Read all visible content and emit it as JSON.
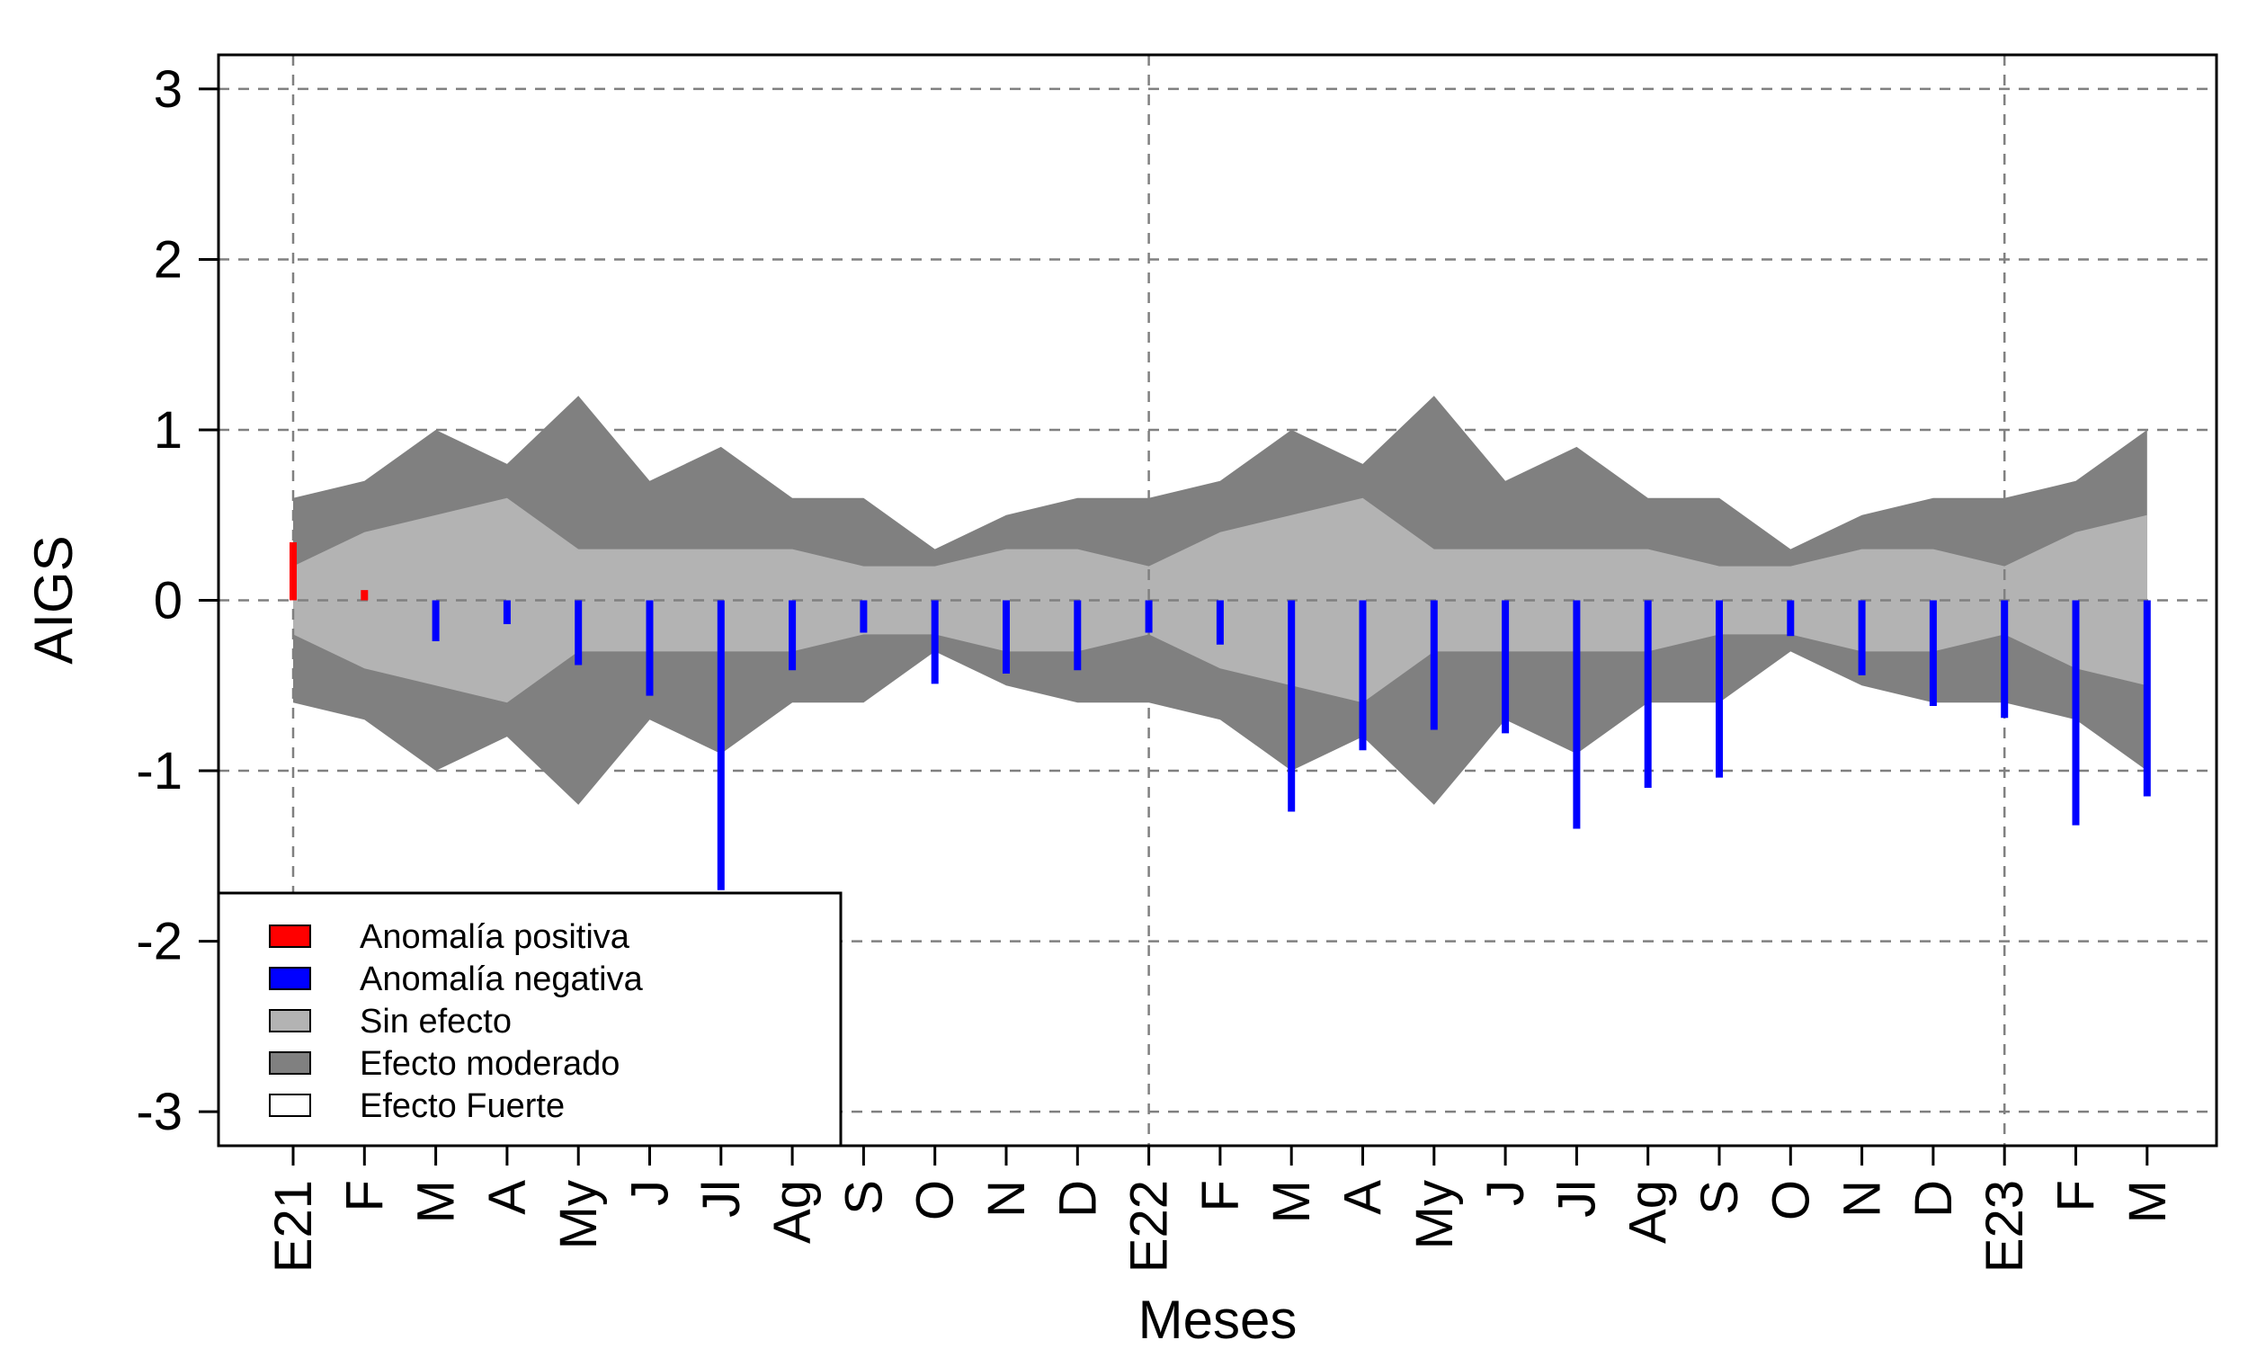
{
  "chart_data": {
    "type": "bar",
    "xlabel": "Meses",
    "ylabel": "AIGS",
    "ylim": [
      -3.2,
      3.2
    ],
    "yticks": [
      -3,
      -2,
      -1,
      0,
      1,
      2,
      3
    ],
    "ytick_labels": [
      "-3",
      "-2",
      "-1",
      "0",
      "1",
      "2",
      "3"
    ],
    "categories": [
      "E21",
      "F",
      "M",
      "A",
      "My",
      "J",
      "Jl",
      "Ag",
      "S",
      "O",
      "N",
      "D",
      "E22",
      "F",
      "M",
      "A",
      "My",
      "J",
      "Jl",
      "Ag",
      "S",
      "O",
      "N",
      "D",
      "E23",
      "F",
      "M"
    ],
    "values": [
      0.34,
      0.06,
      -0.24,
      -0.14,
      -0.38,
      -0.56,
      -1.7,
      -0.41,
      -0.19,
      -0.49,
      -0.43,
      -0.41,
      -0.19,
      -0.26,
      -1.24,
      -0.88,
      -0.76,
      -0.78,
      -1.34,
      -1.1,
      -1.04,
      -0.21,
      -0.44,
      -0.62,
      -0.69,
      -1.32,
      -1.15
    ],
    "band_sin_efecto": [
      0.2,
      0.4,
      0.5,
      0.6,
      0.3,
      0.3,
      0.3,
      0.3,
      0.2,
      0.2,
      0.3,
      0.3,
      0.2,
      0.4,
      0.5,
      0.6,
      0.3,
      0.3,
      0.3,
      0.3,
      0.2,
      0.2,
      0.3,
      0.3,
      0.2,
      0.4,
      0.5
    ],
    "band_efecto_moderado": [
      0.6,
      0.7,
      1.0,
      0.8,
      1.2,
      0.7,
      0.9,
      0.6,
      0.6,
      0.3,
      0.5,
      0.6,
      0.6,
      0.7,
      1.0,
      0.8,
      1.2,
      0.7,
      0.9,
      0.6,
      0.6,
      0.3,
      0.5,
      0.6,
      0.6,
      0.7,
      1.0
    ],
    "vertical_grid_at": [
      "E21",
      "E22",
      "E23"
    ],
    "grid": true,
    "legend_position": "bottom-left",
    "legend": [
      {
        "label": "Anomalía positiva",
        "color": "#ff0000"
      },
      {
        "label": "Anomalía negativa",
        "color": "#0000ff"
      },
      {
        "label": "Sin efecto",
        "color": "#b3b3b3"
      },
      {
        "label": "Efecto moderado",
        "color": "#808080"
      },
      {
        "label": "Efecto Fuerte",
        "color": "#ffffff"
      }
    ],
    "colors": {
      "positive": "#ff0000",
      "negative": "#0000ff",
      "sin_efecto": "#b3b3b3",
      "efecto_moderado": "#808080"
    }
  }
}
